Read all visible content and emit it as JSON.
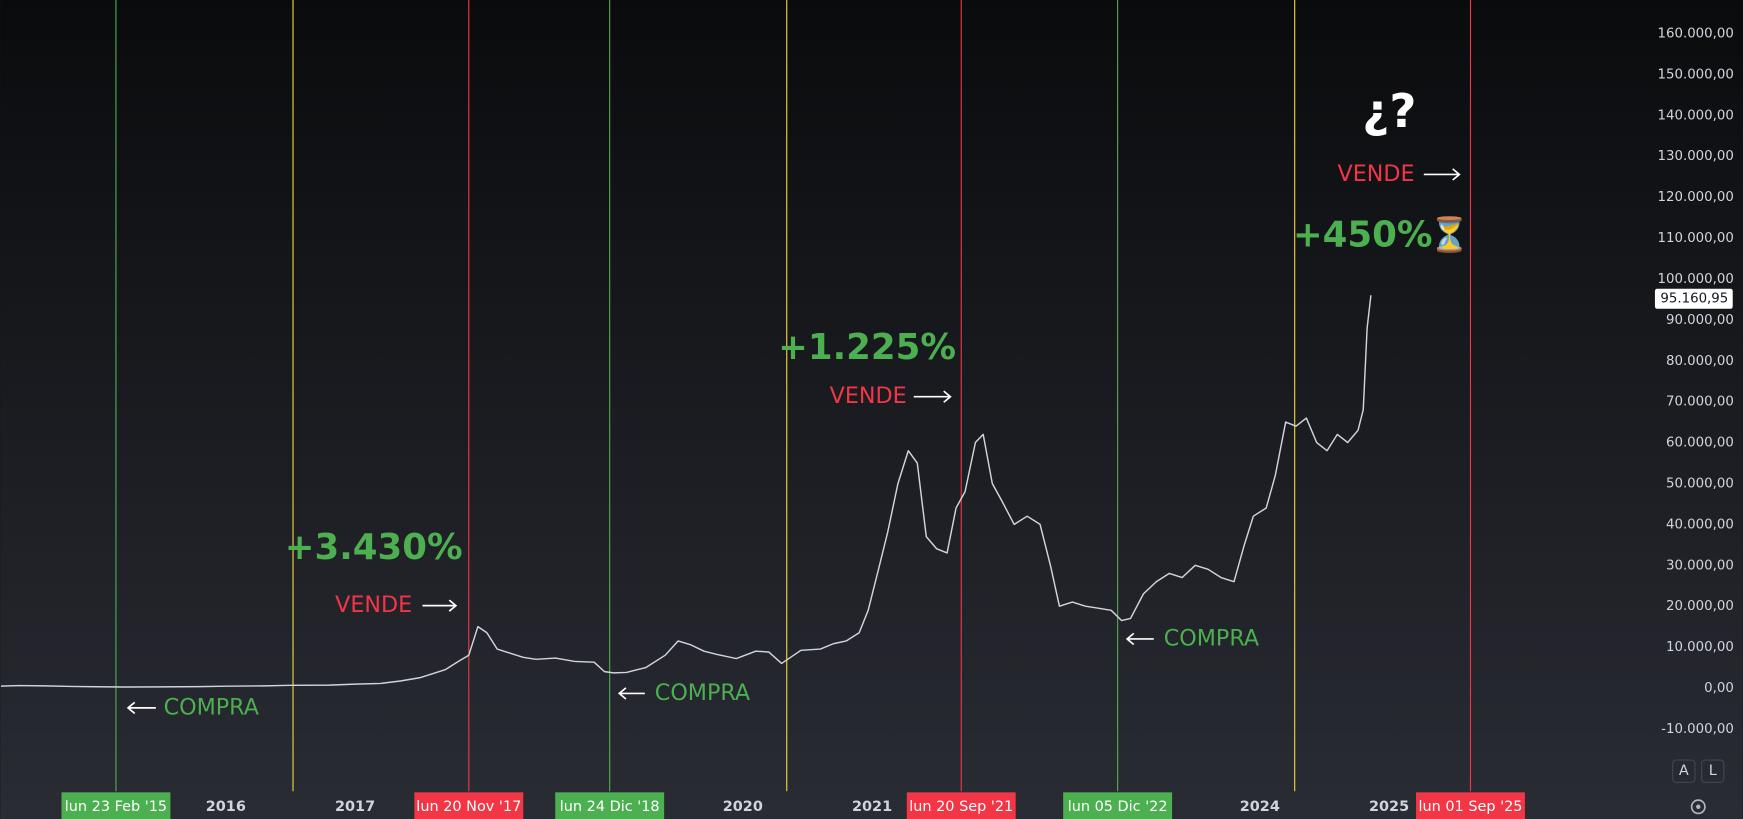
{
  "chart_data": {
    "type": "line",
    "color": "#d1d4dc",
    "x": [
      2014.26,
      2014.4,
      2014.6,
      2014.8,
      2015.0,
      2015.2,
      2015.5,
      2015.8,
      2016.0,
      2016.3,
      2016.5,
      2016.8,
      2017.0,
      2017.2,
      2017.35,
      2017.5,
      2017.6,
      2017.7,
      2017.8,
      2017.88,
      2017.95,
      2018.02,
      2018.1,
      2018.2,
      2018.3,
      2018.4,
      2018.55,
      2018.7,
      2018.85,
      2018.93,
      2019.0,
      2019.1,
      2019.25,
      2019.4,
      2019.5,
      2019.6,
      2019.7,
      2019.8,
      2019.95,
      2020.1,
      2020.2,
      2020.3,
      2020.45,
      2020.6,
      2020.7,
      2020.8,
      2020.9,
      2020.97,
      2021.05,
      2021.12,
      2021.2,
      2021.28,
      2021.35,
      2021.42,
      2021.5,
      2021.58,
      2021.65,
      2021.72,
      2021.8,
      2021.86,
      2021.93,
      2022.0,
      2022.1,
      2022.2,
      2022.3,
      2022.38,
      2022.45,
      2022.55,
      2022.65,
      2022.75,
      2022.85,
      2022.93,
      2023.0,
      2023.1,
      2023.2,
      2023.3,
      2023.4,
      2023.5,
      2023.6,
      2023.7,
      2023.8,
      2023.88,
      2023.95,
      2024.05,
      2024.12,
      2024.2,
      2024.28,
      2024.36,
      2024.44,
      2024.52,
      2024.6,
      2024.68,
      2024.76,
      2024.8,
      2024.83,
      2024.86
    ],
    "values": [
      450,
      600,
      500,
      380,
      300,
      250,
      260,
      330,
      420,
      500,
      650,
      700,
      950,
      1100,
      1700,
      2500,
      3500,
      4500,
      6500,
      8000,
      15000,
      13500,
      9500,
      8500,
      7500,
      7000,
      7300,
      6500,
      6300,
      4000,
      3700,
      3800,
      5000,
      8000,
      11500,
      10500,
      9000,
      8200,
      7200,
      9000,
      8800,
      6000,
      9200,
      9500,
      10800,
      11500,
      13500,
      19000,
      29000,
      38000,
      50000,
      58000,
      55000,
      37000,
      34000,
      33000,
      44000,
      48000,
      60000,
      62000,
      50000,
      46000,
      40000,
      42000,
      40000,
      30000,
      20000,
      21000,
      20000,
      19500,
      19000,
      16500,
      17000,
      23000,
      26000,
      28000,
      27000,
      30000,
      29000,
      27000,
      26000,
      35000,
      42000,
      44000,
      52000,
      65000,
      64000,
      66000,
      60000,
      58000,
      62000,
      60000,
      63000,
      68000,
      88000,
      96000
    ],
    "xlim": [
      2014.255,
      2027.04
    ],
    "xticks": [
      2016,
      2017,
      2020,
      2021,
      2024,
      2025
    ],
    "ylim": [
      -24700,
      168200
    ],
    "yticks": [
      {
        "value": -10000,
        "label": "-10.000,00"
      },
      {
        "value": 0,
        "label": "0,00"
      },
      {
        "value": 10000,
        "label": "10.000,00"
      },
      {
        "value": 20000,
        "label": "20.000,00"
      },
      {
        "value": 30000,
        "label": "30.000,00"
      },
      {
        "value": 40000,
        "label": "40.000,00"
      },
      {
        "value": 50000,
        "label": "50.000,00"
      },
      {
        "value": 60000,
        "label": "60.000,00"
      },
      {
        "value": 70000,
        "label": "70.000,00"
      },
      {
        "value": 80000,
        "label": "80.000,00"
      },
      {
        "value": 90000,
        "label": "90.000,00"
      },
      {
        "value": 100000,
        "label": "100.000,00"
      },
      {
        "value": 110000,
        "label": "110.000,00"
      },
      {
        "value": 120000,
        "label": "120.000,00"
      },
      {
        "value": 130000,
        "label": "130.000,00"
      },
      {
        "value": 140000,
        "label": "140.000,00"
      },
      {
        "value": 150000,
        "label": "150.000,00"
      },
      {
        "value": 160000,
        "label": "160.000,00"
      }
    ],
    "last_price": {
      "value": 95160.95,
      "label": "95.160,95"
    },
    "events": [
      {
        "x": 2015.15,
        "label": "lun 23 Feb '15",
        "color": "#4caf50"
      },
      {
        "x": 2016.52,
        "color": "#f0d93a"
      },
      {
        "x": 2017.88,
        "label": "lun 20 Nov '17",
        "color": "#f23645"
      },
      {
        "x": 2018.97,
        "label": "lun 24 Dic '18",
        "color": "#4caf50"
      },
      {
        "x": 2020.34,
        "color": "#f0d93a"
      },
      {
        "x": 2021.69,
        "label": "lun 20 Sep '21",
        "color": "#f23645"
      },
      {
        "x": 2022.9,
        "label": "lun 05 Dic '22",
        "color": "#4caf50"
      },
      {
        "x": 2024.27,
        "color": "#f0d93a"
      },
      {
        "x": 2025.63,
        "label": "lun 01 Sep '25",
        "color": "#f23645"
      }
    ],
    "annotations": [
      {
        "text": "+3.430%",
        "color": "#4caf50"
      },
      {
        "text": "VENDE",
        "color": "#f23645"
      },
      {
        "text": "COMPRA",
        "color": "#4caf50"
      },
      {
        "text": "COMPRA",
        "color": "#4caf50"
      },
      {
        "text": "+1.225%",
        "color": "#4caf50"
      },
      {
        "text": "VENDE",
        "color": "#f23645"
      },
      {
        "text": "COMPRA",
        "color": "#4caf50"
      },
      {
        "text": "¿?",
        "color": "#ffffff"
      },
      {
        "text": "VENDE",
        "color": "#f23645"
      },
      {
        "text": "+450%",
        "color": "#4caf50"
      },
      {
        "text": "⏳",
        "color": "#f0a030"
      }
    ],
    "buttons": [
      "A",
      "L"
    ]
  }
}
